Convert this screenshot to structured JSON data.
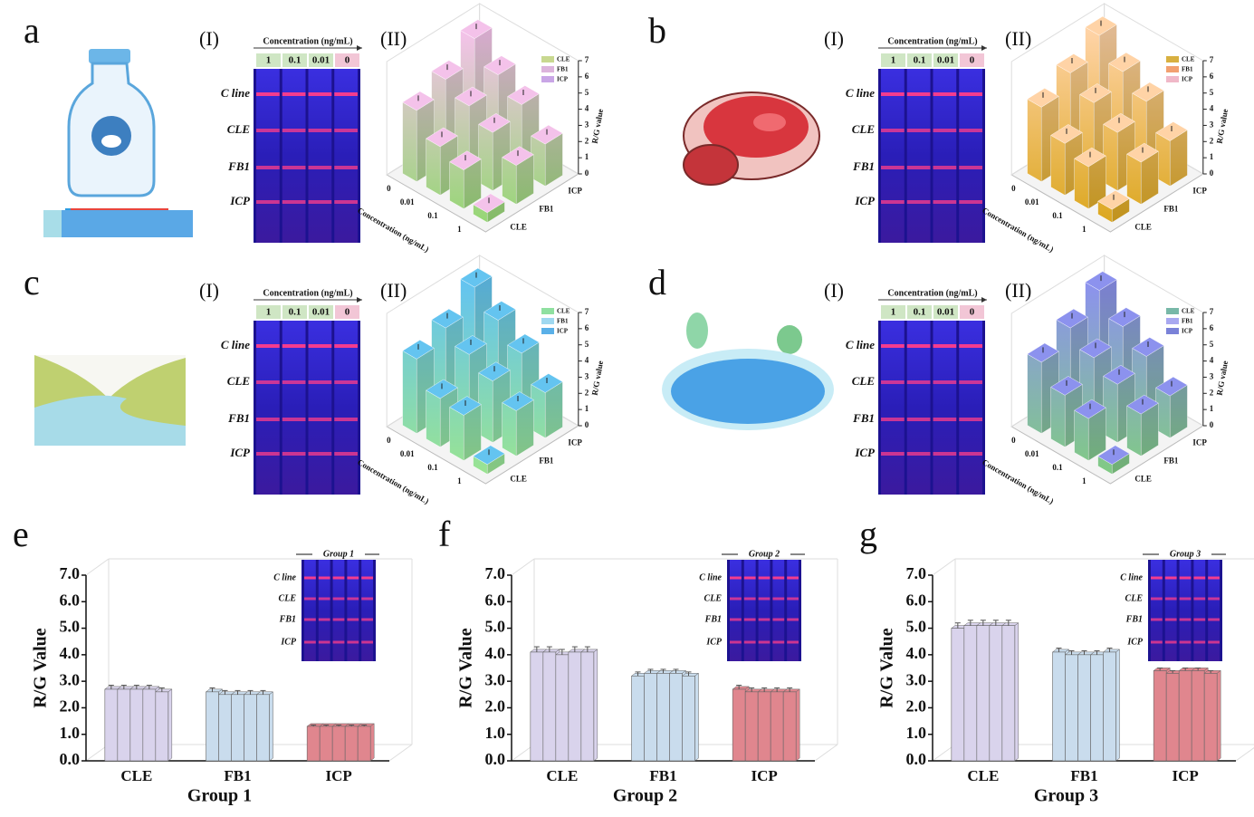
{
  "panels": [
    {
      "label": "a",
      "sample": "Milk",
      "strip_label": "(I)",
      "strip_header": "Concentration (ng/mL)",
      "concentrations": [
        "1",
        "0.1",
        "0.01",
        "0"
      ],
      "lines": [
        "C line",
        "CLE",
        "FB1",
        "ICP"
      ]
    },
    {
      "label": "b",
      "sample": "Pork",
      "strip_label": "(I)",
      "strip_header": "Concentration (ng/mL)",
      "concentrations": [
        "1",
        "0.1",
        "0.01",
        "0"
      ],
      "lines": [
        "C line",
        "CLE",
        "FB1",
        "ICP"
      ]
    },
    {
      "label": "c",
      "sample": "River water",
      "strip_label": "(I)",
      "strip_header": "Concentration (ng/mL)",
      "concentrations": [
        "1",
        "0.1",
        "0.01",
        "0"
      ],
      "lines": [
        "C line",
        "CLE",
        "FB1",
        "ICP"
      ]
    },
    {
      "label": "d",
      "sample": "Lake water",
      "strip_label": "(I)",
      "strip_header": "Concentration (ng/mL)",
      "concentrations": [
        "1",
        "0.1",
        "0.01",
        "0"
      ],
      "lines": [
        "C line",
        "CLE",
        "FB1",
        "ICP"
      ]
    }
  ],
  "insets": [
    {
      "label": "e",
      "title": "Group 1",
      "lines": [
        "C line",
        "CLE",
        "FB1",
        "ICP"
      ]
    },
    {
      "label": "f",
      "title": "Group 2",
      "lines": [
        "C line",
        "CLE",
        "FB1",
        "ICP"
      ]
    },
    {
      "label": "g",
      "title": "Group 3",
      "lines": [
        "C line",
        "CLE",
        "FB1",
        "ICP"
      ]
    }
  ],
  "chart_data": [
    {
      "type": "bar3d",
      "title": "(II)",
      "categories": [
        "0",
        "0.01",
        "0.1",
        "1"
      ],
      "xlabel": "Concentration (ng/mL)",
      "zlabel": "R/G value",
      "zlim": [
        0,
        7
      ],
      "zticks": [
        0,
        1,
        2,
        3,
        4,
        5,
        6,
        7
      ],
      "colors": [
        "#8fd86c",
        "#f4c2ea"
      ],
      "series": [
        {
          "name": "CLE",
          "color": "#c8d890",
          "values": [
            4.4,
            3.0,
            2.4,
            0.6
          ]
        },
        {
          "name": "FB1",
          "color": "#dcb4dc",
          "values": [
            5.2,
            4.4,
            3.6,
            2.4
          ]
        },
        {
          "name": "ICP",
          "color": "#c9a6e6",
          "values": [
            6.6,
            5.2,
            4.2,
            2.6
          ]
        }
      ]
    },
    {
      "type": "bar3d",
      "title": "(II)",
      "categories": [
        "0",
        "0.01",
        "0.1",
        "1"
      ],
      "xlabel": "Concentration (ng/mL)",
      "zlabel": "R/G value",
      "zlim": [
        0,
        7
      ],
      "zticks": [
        0,
        1,
        2,
        3,
        4,
        5,
        6,
        7
      ],
      "colors": [
        "#d9a416",
        "#ffd3a6"
      ],
      "series": [
        {
          "name": "CLE",
          "color": "#d8b040",
          "values": [
            4.6,
            3.2,
            2.6,
            0.8
          ]
        },
        {
          "name": "FB1",
          "color": "#f2a070",
          "values": [
            5.6,
            4.6,
            3.6,
            2.6
          ]
        },
        {
          "name": "ICP",
          "color": "#f0b8c8",
          "values": [
            6.8,
            5.4,
            4.4,
            2.8
          ]
        }
      ]
    },
    {
      "type": "bar3d",
      "title": "(II)",
      "categories": [
        "0",
        "0.01",
        "0.1",
        "1"
      ],
      "xlabel": "Concentration (ng/mL)",
      "zlabel": "R/G value",
      "zlim": [
        0,
        7
      ],
      "zticks": [
        0,
        1,
        2,
        3,
        4,
        5,
        6,
        7
      ],
      "colors": [
        "#9ee68a",
        "#64c4f0"
      ],
      "series": [
        {
          "name": "CLE",
          "color": "#8fe0a0",
          "values": [
            4.6,
            3.0,
            2.8,
            0.6
          ]
        },
        {
          "name": "FB1",
          "color": "#9fd8f0",
          "values": [
            5.4,
            4.6,
            3.8,
            2.8
          ]
        },
        {
          "name": "ICP",
          "color": "#5ab0e8",
          "values": [
            6.8,
            5.6,
            4.4,
            2.8
          ]
        }
      ]
    },
    {
      "type": "bar3d",
      "title": "(II)",
      "categories": [
        "0",
        "0.01",
        "0.1",
        "1"
      ],
      "xlabel": "Concentration (ng/mL)",
      "zlabel": "R/G value",
      "zlim": [
        0,
        7
      ],
      "zticks": [
        0,
        1,
        2,
        3,
        4,
        5,
        6,
        7
      ],
      "colors": [
        "#80cf7c",
        "#8c92ee"
      ],
      "series": [
        {
          "name": "CLE",
          "color": "#78b8a8",
          "values": [
            4.4,
            3.2,
            2.6,
            0.6
          ]
        },
        {
          "name": "FB1",
          "color": "#a8a8f0",
          "values": [
            5.4,
            4.4,
            3.6,
            2.6
          ]
        },
        {
          "name": "ICP",
          "color": "#7a82d8",
          "values": [
            6.6,
            5.2,
            4.2,
            2.6
          ]
        }
      ]
    },
    {
      "type": "bar",
      "categories": [
        "CLE",
        "FB1",
        "ICP"
      ],
      "xlabel": "Group 1",
      "ylabel": "R/G Value",
      "colors": [
        "#d9d3ec",
        "#c9dced",
        "#e0868e"
      ],
      "values": [
        [
          2.7,
          2.7,
          2.7,
          2.7,
          2.6
        ],
        [
          2.6,
          2.5,
          2.5,
          2.5,
          2.5
        ],
        [
          1.3,
          1.3,
          1.3,
          1.3,
          1.3
        ]
      ],
      "errors": [
        [
          0.15,
          0.15,
          0.15,
          0.15,
          0.15
        ],
        [
          0.15,
          0.15,
          0.15,
          0.15,
          0.15
        ],
        [
          0.05,
          0.05,
          0.05,
          0.05,
          0.05
        ]
      ],
      "ylim": [
        0,
        7
      ],
      "yticks": [
        {
          "value": 0,
          "label": "0.0"
        },
        {
          "value": 1,
          "label": "1.0"
        },
        {
          "value": 2,
          "label": "2.0"
        },
        {
          "value": 3,
          "label": "3.0"
        },
        {
          "value": 4,
          "label": "4.0"
        },
        {
          "value": 5,
          "label": "5.0"
        },
        {
          "value": 6,
          "label": "6.0"
        },
        {
          "value": 7,
          "label": "7.0"
        }
      ]
    },
    {
      "type": "bar",
      "categories": [
        "CLE",
        "FB1",
        "ICP"
      ],
      "xlabel": "Group 2",
      "ylabel": "R/G Value",
      "colors": [
        "#d9d3ec",
        "#c9dced",
        "#e0868e"
      ],
      "values": [
        [
          4.1,
          4.1,
          4.0,
          4.1,
          4.1
        ],
        [
          3.2,
          3.3,
          3.3,
          3.3,
          3.2
        ],
        [
          2.7,
          2.6,
          2.6,
          2.6,
          2.6
        ]
      ],
      "errors": [
        [
          0.2,
          0.2,
          0.2,
          0.2,
          0.2
        ],
        [
          0.15,
          0.15,
          0.15,
          0.15,
          0.15
        ],
        [
          0.15,
          0.15,
          0.15,
          0.15,
          0.15
        ]
      ],
      "ylim": [
        0,
        7
      ],
      "yticks": [
        {
          "value": 0,
          "label": "0.0"
        },
        {
          "value": 1,
          "label": "1.0"
        },
        {
          "value": 2,
          "label": "2.0"
        },
        {
          "value": 3,
          "label": "3.0"
        },
        {
          "value": 4,
          "label": "4.0"
        },
        {
          "value": 5,
          "label": "5.0"
        },
        {
          "value": 6,
          "label": "6.0"
        },
        {
          "value": 7,
          "label": "7.0"
        }
      ]
    },
    {
      "type": "bar",
      "categories": [
        "CLE",
        "FB1",
        "ICP"
      ],
      "xlabel": "Group 3",
      "ylabel": "R/G Value",
      "colors": [
        "#d9d3ec",
        "#c9dced",
        "#e0868e"
      ],
      "values": [
        [
          5.0,
          5.1,
          5.1,
          5.1,
          5.1
        ],
        [
          4.1,
          4.0,
          4.0,
          4.0,
          4.1
        ],
        [
          3.4,
          3.3,
          3.4,
          3.4,
          3.3
        ]
      ],
      "errors": [
        [
          0.2,
          0.2,
          0.2,
          0.2,
          0.2
        ],
        [
          0.15,
          0.15,
          0.15,
          0.15,
          0.15
        ],
        [
          0.1,
          0.1,
          0.1,
          0.1,
          0.1
        ]
      ],
      "ylim": [
        0,
        7
      ],
      "yticks": [
        {
          "value": 0,
          "label": "0.0"
        },
        {
          "value": 1,
          "label": "1.0"
        },
        {
          "value": 2,
          "label": "2.0"
        },
        {
          "value": 3,
          "label": "3.0"
        },
        {
          "value": 4,
          "label": "4.0"
        },
        {
          "value": 5,
          "label": "5.0"
        },
        {
          "value": 6,
          "label": "6.0"
        },
        {
          "value": 7,
          "label": "7.0"
        }
      ]
    }
  ]
}
